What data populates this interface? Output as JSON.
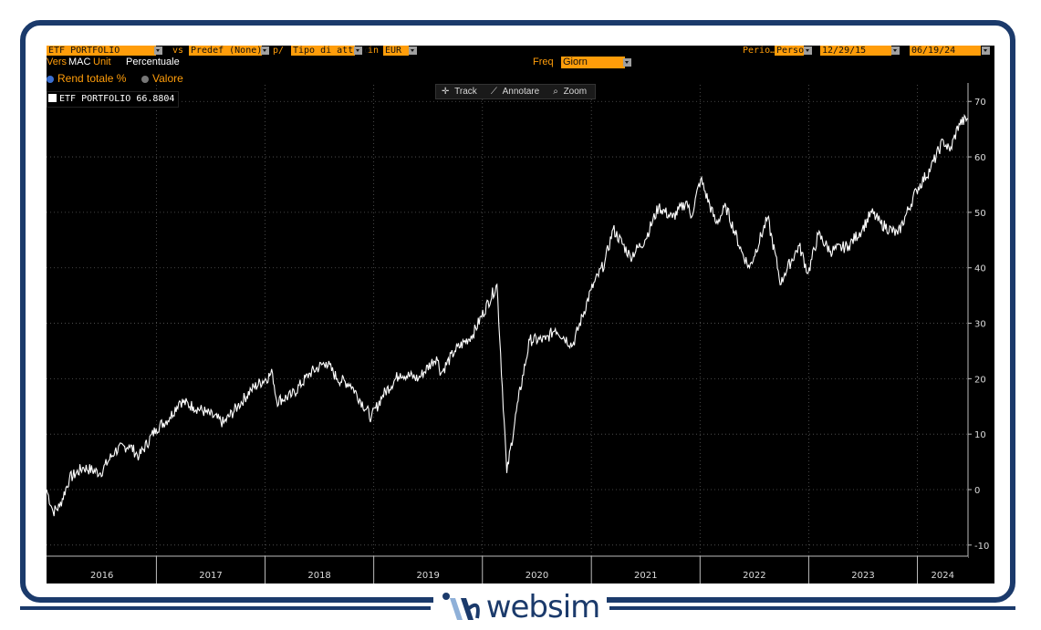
{
  "toolbar": {
    "security": "ETF PORTFOLIO",
    "vs_label": "vs",
    "vs_value": "Predef (None)",
    "per_label": "p/",
    "per_value": "Tipo di attivo",
    "in_label": "in",
    "currency": "EUR",
    "period_label": "Perio…",
    "period_value": "Perso",
    "start_date": "12/29/15",
    "end_date": "06/19/24"
  },
  "options": {
    "vers_label": "Vers",
    "vers_value": "MAC",
    "unit_label": "Unit",
    "unit_value": "Percentuale",
    "freq_label": "Freq",
    "freq_value": "Giorn",
    "mode_total": "Rend totale %",
    "mode_value": "Valore"
  },
  "tools": {
    "track": "Track",
    "annotate": "Annotare",
    "zoom": "Zoom"
  },
  "legend": {
    "series_name": "ETF PORTFOLIO",
    "last_value": "66.8804"
  },
  "brand": {
    "name": "websim"
  },
  "colors": {
    "accent": "#ff9d0a",
    "line": "#ffffff",
    "frame": "#1b3a6b"
  },
  "chart_data": {
    "type": "line",
    "title": "",
    "xlabel": "",
    "ylabel": "",
    "x_start": "2015-12-29",
    "x_end": "2024-06-19",
    "ylim": [
      -12,
      73
    ],
    "yticks": [
      -10,
      0,
      10,
      20,
      30,
      40,
      50,
      60,
      70
    ],
    "xtick_labels": [
      "2016",
      "2017",
      "2018",
      "2019",
      "2020",
      "2021",
      "2022",
      "2023",
      "2024"
    ],
    "grid": true,
    "legend": "top-left",
    "series": [
      {
        "name": "ETF PORTFOLIO",
        "points": [
          [
            "2015-12-29",
            0
          ],
          [
            "2016-01-20",
            -4
          ],
          [
            "2016-02-11",
            -3
          ],
          [
            "2016-03-15",
            2
          ],
          [
            "2016-05-01",
            4
          ],
          [
            "2016-06-27",
            3
          ],
          [
            "2016-08-15",
            7
          ],
          [
            "2016-10-01",
            8
          ],
          [
            "2016-11-04",
            6
          ],
          [
            "2016-12-31",
            11
          ],
          [
            "2017-02-15",
            13
          ],
          [
            "2017-03-20",
            16
          ],
          [
            "2017-05-05",
            15
          ],
          [
            "2017-06-15",
            14
          ],
          [
            "2017-08-15",
            12
          ],
          [
            "2017-10-01",
            15
          ],
          [
            "2017-11-15",
            18
          ],
          [
            "2018-01-26",
            21
          ],
          [
            "2018-02-09",
            16
          ],
          [
            "2018-04-01",
            17
          ],
          [
            "2018-06-01",
            21
          ],
          [
            "2018-07-25",
            23
          ],
          [
            "2018-08-31",
            20
          ],
          [
            "2018-10-15",
            19
          ],
          [
            "2018-12-24",
            13
          ],
          [
            "2019-01-31",
            17
          ],
          [
            "2019-03-31",
            21
          ],
          [
            "2019-05-31",
            20
          ],
          [
            "2019-07-31",
            24
          ],
          [
            "2019-08-15",
            21
          ],
          [
            "2019-09-30",
            25
          ],
          [
            "2019-11-30",
            28
          ],
          [
            "2020-02-19",
            37
          ],
          [
            "2020-03-23",
            3
          ],
          [
            "2020-04-30",
            16
          ],
          [
            "2020-06-08",
            27
          ],
          [
            "2020-07-31",
            27
          ],
          [
            "2020-09-02",
            29
          ],
          [
            "2020-10-30",
            26
          ],
          [
            "2020-12-31",
            36
          ],
          [
            "2021-02-15",
            41
          ],
          [
            "2021-03-15",
            47
          ],
          [
            "2021-05-12",
            42
          ],
          [
            "2021-06-30",
            45
          ],
          [
            "2021-08-15",
            51
          ],
          [
            "2021-09-30",
            49
          ],
          [
            "2021-11-18",
            52
          ],
          [
            "2021-12-01",
            49
          ],
          [
            "2022-01-03",
            56
          ],
          [
            "2022-02-24",
            48
          ],
          [
            "2022-03-29",
            51
          ],
          [
            "2022-05-20",
            43
          ],
          [
            "2022-06-16",
            40
          ],
          [
            "2022-08-16",
            49
          ],
          [
            "2022-09-30",
            37
          ],
          [
            "2022-10-12",
            39
          ],
          [
            "2022-11-30",
            44
          ],
          [
            "2022-12-30",
            39
          ],
          [
            "2023-02-02",
            46
          ],
          [
            "2023-03-15",
            43
          ],
          [
            "2023-05-15",
            44
          ],
          [
            "2023-06-30",
            47
          ],
          [
            "2023-07-31",
            50
          ],
          [
            "2023-08-31",
            48
          ],
          [
            "2023-10-27",
            46
          ],
          [
            "2023-12-29",
            54
          ],
          [
            "2024-02-15",
            58
          ],
          [
            "2024-03-28",
            63
          ],
          [
            "2024-04-19",
            61
          ],
          [
            "2024-05-20",
            66
          ],
          [
            "2024-06-19",
            66.88
          ]
        ]
      }
    ]
  }
}
